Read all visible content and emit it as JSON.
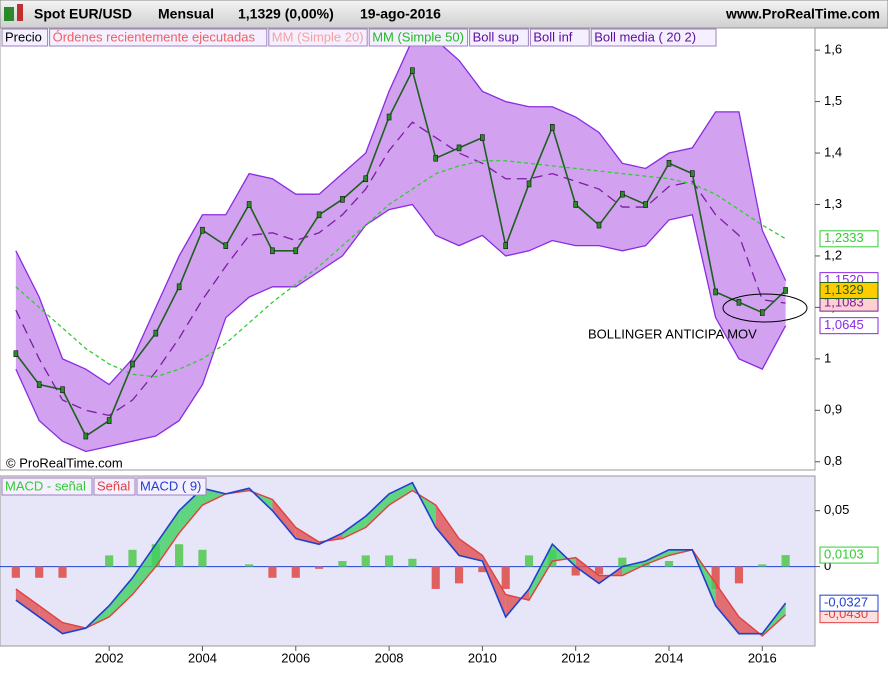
{
  "header": {
    "symbol": "Spot EUR/USD",
    "period": "Mensual",
    "quote": "1,1329 (0,00%)",
    "date": "19-ago-2016",
    "site": "www.ProRealTime.com"
  },
  "chart_data": [
    {
      "type": "line",
      "legend": [
        "Precio",
        "Órdenes recientemente ejecutadas",
        "MM (Simple 20)",
        "MM (Simple 50)",
        "Boll sup",
        "Boll inf",
        "Boll media ( 20 2)"
      ],
      "annotations": [
        "BOLLINGER ANTICIPA MOV",
        "© ProRealTime.com"
      ],
      "x": [
        2000,
        2000.5,
        2001,
        2001.5,
        2002,
        2002.5,
        2003,
        2003.5,
        2004,
        2004.5,
        2005,
        2005.5,
        2006,
        2006.5,
        2007,
        2007.5,
        2008,
        2008.5,
        2009,
        2009.5,
        2010,
        2010.5,
        2011,
        2011.5,
        2012,
        2012.5,
        2013,
        2013.5,
        2014,
        2014.5,
        2015,
        2015.5,
        2016,
        2016.5
      ],
      "xlim": [
        1999.66,
        2017.13
      ],
      "ylim": [
        0.784,
        1.643
      ],
      "yticks": [
        {
          "value": 0.8,
          "label": "0,8"
        },
        {
          "value": 0.9,
          "label": "0,9"
        },
        1,
        {
          "value": 1.1,
          "label": "1,1"
        },
        {
          "value": 1.2,
          "label": "1,2"
        },
        {
          "value": 1.3,
          "label": "1,3"
        },
        {
          "value": 1.4,
          "label": "1,4"
        },
        {
          "value": 1.5,
          "label": "1,5"
        },
        {
          "value": 1.6,
          "label": "1,6"
        }
      ],
      "series": [
        {
          "name": "Boll sup",
          "color": "#8a2be2",
          "values": [
            1.21,
            1.12,
            1.0,
            0.98,
            0.95,
            1.0,
            1.1,
            1.2,
            1.28,
            1.28,
            1.36,
            1.35,
            1.32,
            1.32,
            1.36,
            1.4,
            1.52,
            1.62,
            1.62,
            1.58,
            1.52,
            1.5,
            1.49,
            1.49,
            1.47,
            1.44,
            1.38,
            1.37,
            1.4,
            1.41,
            1.48,
            1.48,
            1.25,
            1.152
          ],
          "value_labels": [
            null,
            null,
            null,
            null,
            null,
            null,
            null,
            null,
            null,
            null,
            null,
            null,
            null,
            null,
            null,
            null,
            null,
            null,
            null,
            null,
            null,
            null,
            null,
            null,
            null,
            null,
            null,
            null,
            null,
            null,
            null,
            null,
            null,
            "1,1520"
          ]
        },
        {
          "name": "Boll inf",
          "color": "#8a2be2",
          "values": [
            0.98,
            0.88,
            0.84,
            0.82,
            0.83,
            0.84,
            0.85,
            0.88,
            0.95,
            1.08,
            1.12,
            1.14,
            1.14,
            1.17,
            1.2,
            1.26,
            1.29,
            1.3,
            1.24,
            1.22,
            1.24,
            1.2,
            1.21,
            1.23,
            1.22,
            1.22,
            1.21,
            1.22,
            1.27,
            1.28,
            1.08,
            1.0,
            0.98,
            1.0645
          ],
          "value_labels": [
            null,
            null,
            null,
            null,
            null,
            null,
            null,
            null,
            null,
            null,
            null,
            null,
            null,
            null,
            null,
            null,
            null,
            null,
            null,
            null,
            null,
            null,
            null,
            null,
            null,
            null,
            null,
            null,
            null,
            null,
            null,
            null,
            null,
            "1,0645"
          ]
        },
        {
          "name": "Boll media ( 20 2)",
          "color": "#7a1fa0",
          "values": [
            1.095,
            1.0,
            0.92,
            0.9,
            0.89,
            0.92,
            0.975,
            1.04,
            1.115,
            1.18,
            1.24,
            1.245,
            1.23,
            1.245,
            1.28,
            1.33,
            1.405,
            1.46,
            1.43,
            1.4,
            1.38,
            1.35,
            1.35,
            1.36,
            1.345,
            1.33,
            1.295,
            1.295,
            1.335,
            1.345,
            1.28,
            1.24,
            1.115,
            1.1083
          ],
          "value_labels": [
            null,
            null,
            null,
            null,
            null,
            null,
            null,
            null,
            null,
            null,
            null,
            null,
            null,
            null,
            null,
            null,
            null,
            null,
            null,
            null,
            null,
            null,
            null,
            null,
            null,
            null,
            null,
            null,
            null,
            null,
            null,
            null,
            null,
            "1,1083"
          ]
        },
        {
          "name": "MM (Simple 50)",
          "color": "#33cc33",
          "values": [
            1.14,
            1.1,
            1.06,
            1.02,
            0.99,
            0.97,
            0.965,
            0.98,
            1.0,
            1.03,
            1.07,
            1.11,
            1.145,
            1.18,
            1.22,
            1.26,
            1.3,
            1.33,
            1.36,
            1.375,
            1.385,
            1.385,
            1.38,
            1.375,
            1.37,
            1.365,
            1.36,
            1.355,
            1.35,
            1.34,
            1.32,
            1.29,
            1.26,
            1.2333
          ],
          "value_labels": [
            null,
            null,
            null,
            null,
            null,
            null,
            null,
            null,
            null,
            null,
            null,
            null,
            null,
            null,
            null,
            null,
            null,
            null,
            null,
            null,
            null,
            null,
            null,
            null,
            null,
            null,
            null,
            null,
            null,
            null,
            null,
            null,
            null,
            "1,2333"
          ]
        },
        {
          "name": "Precio",
          "color": "#1f5f1f",
          "values": [
            1.01,
            0.95,
            0.94,
            0.85,
            0.88,
            0.99,
            1.05,
            1.14,
            1.25,
            1.22,
            1.3,
            1.21,
            1.21,
            1.28,
            1.31,
            1.35,
            1.47,
            1.56,
            1.39,
            1.41,
            1.43,
            1.22,
            1.34,
            1.45,
            1.3,
            1.26,
            1.32,
            1.3,
            1.38,
            1.36,
            1.13,
            1.11,
            1.09,
            1.1329
          ],
          "value_labels": [
            null,
            null,
            null,
            null,
            null,
            null,
            null,
            null,
            null,
            null,
            null,
            null,
            null,
            null,
            null,
            null,
            null,
            null,
            null,
            null,
            null,
            null,
            null,
            null,
            null,
            null,
            null,
            null,
            null,
            null,
            null,
            null,
            null,
            "1,1329"
          ]
        }
      ]
    },
    {
      "type": "macd",
      "x": [
        2000,
        2000.5,
        2001,
        2001.5,
        2002,
        2002.5,
        2003,
        2003.5,
        2004,
        2004.5,
        2005,
        2005.5,
        2006,
        2006.5,
        2007,
        2007.5,
        2008,
        2008.5,
        2009,
        2009.5,
        2010,
        2010.5,
        2011,
        2011.5,
        2012,
        2012.5,
        2013,
        2013.5,
        2014,
        2014.5,
        2015,
        2015.5,
        2016,
        2016.5
      ],
      "xlim": [
        1999.66,
        2017.13
      ],
      "xticks": [
        2002,
        2004,
        2006,
        2008,
        2010,
        2012,
        2014,
        2016
      ],
      "ylim": [
        -0.071,
        0.081
      ],
      "yticks": [
        0,
        {
          "value": 0.05,
          "label": "0,05"
        }
      ],
      "series": [
        {
          "name": "MACD - señal",
          "color": "#33cc33",
          "values": [
            -0.01,
            -0.01,
            -0.01,
            0,
            0.01,
            0.015,
            0.02,
            0.02,
            0.015,
            0,
            0.002,
            -0.01,
            -0.01,
            -0.002,
            0.005,
            0.01,
            0.01,
            0.007,
            -0.02,
            -0.015,
            -0.005,
            -0.02,
            0.01,
            0.015,
            -0.008,
            -0.007,
            0.008,
            0.003,
            0.005,
            0,
            -0.02,
            -0.015,
            0.002,
            0.0103
          ],
          "value_labels": [
            null,
            null,
            null,
            null,
            null,
            null,
            null,
            null,
            null,
            null,
            null,
            null,
            null,
            null,
            null,
            null,
            null,
            null,
            null,
            null,
            null,
            null,
            null,
            null,
            null,
            null,
            null,
            null,
            null,
            null,
            null,
            null,
            null,
            "0,0103"
          ]
        },
        {
          "name": "Señal",
          "color": "#e04040",
          "values": [
            -0.02,
            -0.035,
            -0.05,
            -0.055,
            -0.045,
            -0.025,
            0,
            0.03,
            0.055,
            0.065,
            0.068,
            0.06,
            0.035,
            0.022,
            0.025,
            0.035,
            0.055,
            0.068,
            0.055,
            0.025,
            0.01,
            -0.025,
            -0.03,
            0.005,
            0.008,
            -0.008,
            -0.008,
            0.002,
            0.01,
            0.015,
            -0.015,
            -0.045,
            -0.062,
            -0.043
          ],
          "value_labels": [
            null,
            null,
            null,
            null,
            null,
            null,
            null,
            null,
            null,
            null,
            null,
            null,
            null,
            null,
            null,
            null,
            null,
            null,
            null,
            null,
            null,
            null,
            null,
            null,
            null,
            null,
            null,
            null,
            null,
            null,
            null,
            null,
            null,
            "-0,0430"
          ]
        },
        {
          "name": "MACD ( 9)",
          "color": "#2040d0",
          "values": [
            -0.03,
            -0.045,
            -0.06,
            -0.055,
            -0.035,
            -0.01,
            0.02,
            0.05,
            0.07,
            0.065,
            0.07,
            0.05,
            0.025,
            0.02,
            0.03,
            0.045,
            0.065,
            0.075,
            0.035,
            0.01,
            0.005,
            -0.045,
            -0.02,
            0.02,
            0,
            -0.015,
            0,
            0.005,
            0.015,
            0.015,
            -0.035,
            -0.06,
            -0.06,
            -0.0327
          ],
          "value_labels": [
            null,
            null,
            null,
            null,
            null,
            null,
            null,
            null,
            null,
            null,
            null,
            null,
            null,
            null,
            null,
            null,
            null,
            null,
            null,
            null,
            null,
            null,
            null,
            null,
            null,
            null,
            null,
            null,
            null,
            null,
            null,
            null,
            null,
            "-0,0327"
          ]
        }
      ]
    }
  ]
}
